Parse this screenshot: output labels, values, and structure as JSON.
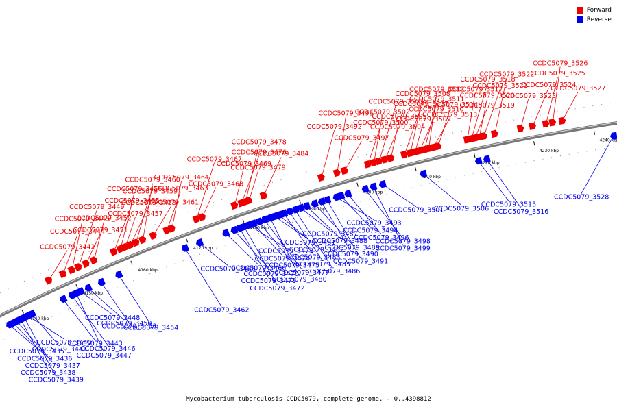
{
  "caption": "Mycobacterium tuberculosis CCDC5079, complete genome. - 0..4398812",
  "colors": {
    "forward": "#ee0000",
    "reverse": "#0000ee",
    "backbone": "#777777",
    "tick": "#000000"
  },
  "legend": [
    {
      "label": "Forward",
      "color": "#ee0000"
    },
    {
      "label": "Reverse",
      "color": "#0000ee"
    }
  ],
  "chart_data": {
    "type": "genome-map",
    "range_kbp": [
      4135,
      4245
    ],
    "ticks_kbp": [
      4140,
      4150,
      4160,
      4170,
      4180,
      4190,
      4200,
      4210,
      4220,
      4230,
      4240
    ],
    "tick_labels": [
      "4140 kbp",
      "4150 kbp",
      "4160 kbp",
      "4170 kbp",
      "4180 kbp",
      "4190 kbp",
      "4200 kbp",
      "4210 kbp",
      "4220 kbp",
      "4230 kbp",
      "4240 kbp"
    ],
    "forward_genes": [
      {
        "name": "CCDC5079_3442",
        "pos": 4146.2
      },
      {
        "name": "CCDC5079_3444",
        "pos": 4148.8
      },
      {
        "name": "CCDC5079_3445",
        "pos": 4150.4
      },
      {
        "name": "CCDC5079_3449",
        "pos": 4151.6
      },
      {
        "name": "CCDC5079_3451",
        "pos": 4153.0
      },
      {
        "name": "CCDC5079_3452",
        "pos": 4154.4
      },
      {
        "name": "CCDC5079_3455",
        "pos": 4158.0
      },
      {
        "name": "CCDC5079_3456",
        "pos": 4159.2
      },
      {
        "name": "CCDC5079_3457",
        "pos": 4160.1
      },
      {
        "name": "CCDC5079_3458",
        "pos": 4161.0
      },
      {
        "name": "CCDC5079_3459",
        "pos": 4162.0
      },
      {
        "name": "CCDC5079_3460",
        "pos": 4163.2
      },
      {
        "name": "CCDC5079_3461",
        "pos": 4165.1
      },
      {
        "name": "CCDC5079_3463",
        "pos": 4167.5
      },
      {
        "name": "CCDC5079_3464",
        "pos": 4168.4
      },
      {
        "name": "CCDC5079_3467",
        "pos": 4172.8
      },
      {
        "name": "CCDC5079_3468",
        "pos": 4173.8
      },
      {
        "name": "CCDC5079_3469",
        "pos": 4179.5
      },
      {
        "name": "CCDC5079_3476",
        "pos": 4180.7
      },
      {
        "name": "CCDC5079_3478",
        "pos": 4181.4
      },
      {
        "name": "CCDC5079_3479",
        "pos": 4182.0
      },
      {
        "name": "CCDC5079_3484",
        "pos": 4184.6
      },
      {
        "name": "CCDC5079_3492",
        "pos": 4194.6
      },
      {
        "name": "CCDC5079_3495",
        "pos": 4197.3
      },
      {
        "name": "CCDC5079_3497",
        "pos": 4198.6
      },
      {
        "name": "CCDC5079_3500",
        "pos": 4202.6
      },
      {
        "name": "CCDC5079_3502",
        "pos": 4203.6
      },
      {
        "name": "CCDC5079_3503",
        "pos": 4204.5
      },
      {
        "name": "CCDC5079_3504",
        "pos": 4205.5
      },
      {
        "name": "CCDC5079_3505",
        "pos": 4206.5
      },
      {
        "name": "CCDC5079_3507",
        "pos": 4208.8
      },
      {
        "name": "CCDC5079_3508",
        "pos": 4209.8
      },
      {
        "name": "CCDC5079_3509",
        "pos": 4210.6
      },
      {
        "name": "CCDC5079_3510",
        "pos": 4211.4
      },
      {
        "name": "CCDC5079_3511",
        "pos": 4212.2
      },
      {
        "name": "CCDC5079_3512",
        "pos": 4212.9
      },
      {
        "name": "CCDC5079_3513",
        "pos": 4213.7
      },
      {
        "name": "CCDC5079_3514",
        "pos": 4214.5
      },
      {
        "name": "CCDC5079_3517",
        "pos": 4219.4
      },
      {
        "name": "CCDC5079_3518",
        "pos": 4220.1
      },
      {
        "name": "CCDC5079_3519",
        "pos": 4220.7
      },
      {
        "name": "CCDC5079_3520",
        "pos": 4221.4
      },
      {
        "name": "CCDC5079_3521",
        "pos": 4222.2
      },
      {
        "name": "CCDC5079_3522",
        "pos": 4224.0
      },
      {
        "name": "CCDC5079_3523",
        "pos": 4228.3
      },
      {
        "name": "CCDC5079_3524",
        "pos": 4230.3
      },
      {
        "name": "CCDC5079_3525",
        "pos": 4232.5
      },
      {
        "name": "CCDC5079_3526",
        "pos": 4233.6
      },
      {
        "name": "CCDC5079_3527",
        "pos": 4235.2
      }
    ],
    "reverse_genes": [
      {
        "name": "CCDC5079_3435",
        "pos": 4137.0
      },
      {
        "name": "CCDC5079_3436",
        "pos": 4137.7
      },
      {
        "name": "CCDC5079_3437",
        "pos": 4138.4
      },
      {
        "name": "CCDC5079_3438",
        "pos": 4139.1
      },
      {
        "name": "CCDC5079_3439",
        "pos": 4139.8
      },
      {
        "name": "CCDC5079_3440",
        "pos": 4140.5
      },
      {
        "name": "CCDC5079_3441",
        "pos": 4141.2
      },
      {
        "name": "CCDC5079_3443",
        "pos": 4147.0
      },
      {
        "name": "CCDC5079_3446",
        "pos": 4148.6
      },
      {
        "name": "CCDC5079_3447",
        "pos": 4149.4
      },
      {
        "name": "CCDC5079_3448",
        "pos": 4150.2
      },
      {
        "name": "CCDC5079_3450",
        "pos": 4151.6
      },
      {
        "name": "CCDC5079_3453",
        "pos": 4154.0
      },
      {
        "name": "CCDC5079_3454",
        "pos": 4157.2
      },
      {
        "name": "CCDC5079_3462",
        "pos": 4169.2
      },
      {
        "name": "CCDC5079_3465",
        "pos": 4171.8
      },
      {
        "name": "CCDC5079_3466",
        "pos": 4176.5
      },
      {
        "name": "CCDC5079_3470",
        "pos": 4178.0
      },
      {
        "name": "CCDC5079_3471",
        "pos": 4179.0
      },
      {
        "name": "CCDC5079_3472",
        "pos": 4179.8
      },
      {
        "name": "CCDC5079_3473",
        "pos": 4180.6
      },
      {
        "name": "CCDC5079_3474",
        "pos": 4181.4
      },
      {
        "name": "CCDC5079_3475",
        "pos": 4182.4
      },
      {
        "name": "CCDC5079_3477",
        "pos": 4183.4
      },
      {
        "name": "CCDC5079_3480",
        "pos": 4184.4
      },
      {
        "name": "CCDC5079_3481",
        "pos": 4185.2
      },
      {
        "name": "CCDC5079_3482",
        "pos": 4186.0
      },
      {
        "name": "CCDC5079_3483",
        "pos": 4186.8
      },
      {
        "name": "CCDC5079_3485",
        "pos": 4187.8
      },
      {
        "name": "CCDC5079_3486",
        "pos": 4188.8
      },
      {
        "name": "CCDC5079_3487",
        "pos": 4189.8
      },
      {
        "name": "CCDC5079_3488",
        "pos": 4190.8
      },
      {
        "name": "CCDC5079_3489",
        "pos": 4192.2
      },
      {
        "name": "CCDC5079_3490",
        "pos": 4193.4
      },
      {
        "name": "CCDC5079_3491",
        "pos": 4194.4
      },
      {
        "name": "CCDC5079_3493",
        "pos": 4196.0
      },
      {
        "name": "CCDC5079_3494",
        "pos": 4196.8
      },
      {
        "name": "CCDC5079_3496",
        "pos": 4198.0
      },
      {
        "name": "CCDC5079_3498",
        "pos": 4201.0
      },
      {
        "name": "CCDC5079_3499",
        "pos": 4202.4
      },
      {
        "name": "CCDC5079_3501",
        "pos": 4204.0
      },
      {
        "name": "CCDC5079_3506",
        "pos": 4211.0
      },
      {
        "name": "CCDC5079_3515",
        "pos": 4220.4
      },
      {
        "name": "CCDC5079_3516",
        "pos": 4221.8
      },
      {
        "name": "CCDC5079_3528",
        "pos": 4243.0
      }
    ]
  }
}
